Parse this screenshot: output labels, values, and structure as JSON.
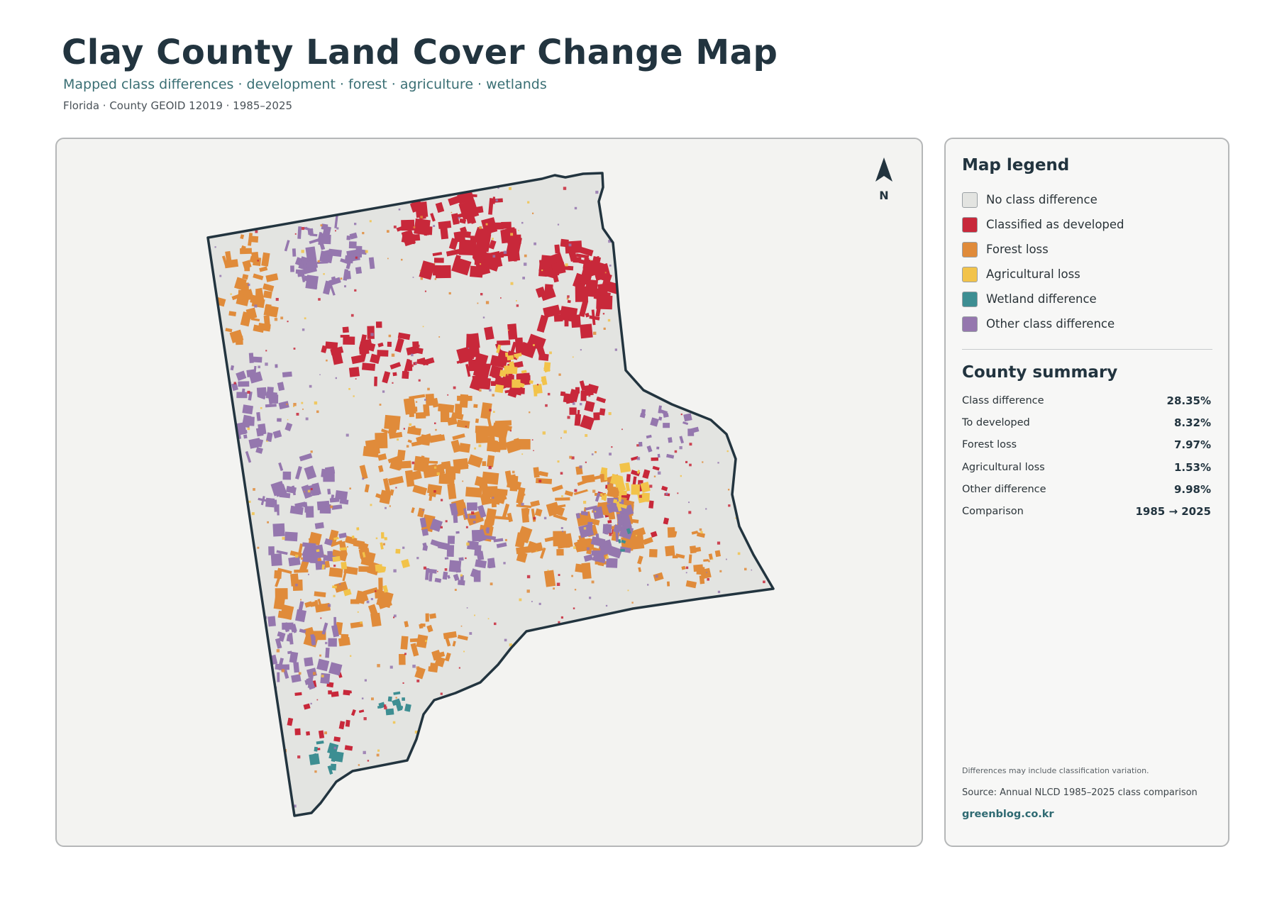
{
  "header": {
    "title": "Clay County Land Cover Change Map",
    "subtitle": "Mapped class differences · development · forest · agriculture · wetlands",
    "meta": "Florida · County GEOID 12019 · 1985–2025"
  },
  "map": {
    "north_label": "N",
    "colors": {
      "no_change": "#e3e4e1",
      "developed": "#c8283a",
      "forest_loss": "#e08b3a",
      "agricultural_loss": "#f2c34a",
      "wetland": "#3d8e92",
      "other": "#9577ae",
      "outline": "#22343f"
    }
  },
  "legend": {
    "title": "Map legend",
    "items": [
      {
        "label": "No class difference",
        "color": "#e3e4e1"
      },
      {
        "label": "Classified as developed",
        "color": "#c8283a"
      },
      {
        "label": "Forest loss",
        "color": "#e08b3a"
      },
      {
        "label": "Agricultural loss",
        "color": "#f2c34a"
      },
      {
        "label": "Wetland difference",
        "color": "#3d8e92"
      },
      {
        "label": "Other class difference",
        "color": "#9577ae"
      }
    ]
  },
  "summary": {
    "title": "County summary",
    "rows": [
      {
        "label": "Class difference",
        "value": "28.35%"
      },
      {
        "label": "To developed",
        "value": "8.32%"
      },
      {
        "label": "Forest loss",
        "value": "7.97%"
      },
      {
        "label": "Agricultural loss",
        "value": "1.53%"
      },
      {
        "label": "Other difference",
        "value": "9.98%"
      },
      {
        "label": "Comparison",
        "value": "1985 → 2025"
      }
    ]
  },
  "footer": {
    "note": "Differences may include classification variation.",
    "source": "Source: Annual NLCD 1985–2025 class comparison",
    "brand": "greenblog.co.kr"
  }
}
